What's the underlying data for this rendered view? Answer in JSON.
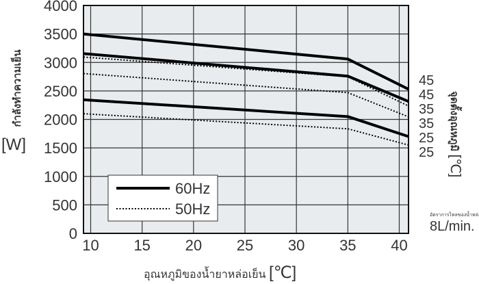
{
  "chart_data": {
    "type": "line",
    "xlabel": "อุณหภูมิของน้ำยาหล่อเย็น",
    "xunit": "[℃]",
    "ylabel": "กำลังทำความเย็น",
    "yunit": "[W]",
    "xlim": [
      9.3,
      40.9
    ],
    "ylim": [
      0,
      4000
    ],
    "xticks": [
      10,
      15,
      20,
      25,
      30,
      35,
      40
    ],
    "yticks": [
      0,
      500,
      1000,
      1500,
      2000,
      2500,
      3000,
      3500,
      4000
    ],
    "grid": true,
    "legend_position": "bottom-left",
    "legend": [
      {
        "label": "60Hz",
        "style": "solid"
      },
      {
        "label": "50Hz",
        "style": "dotted"
      }
    ],
    "right_axis": {
      "title": "จุดตั้งอุณหภูมิ",
      "unit": "[℃]",
      "labels": [
        "45",
        "45",
        "35",
        "35",
        "25",
        "25"
      ]
    },
    "flow_note": {
      "label": "อัตราการไหลของน้ำหล่อเย็น",
      "value": "8L/min."
    },
    "series": [
      {
        "freq": "60Hz",
        "style": "solid",
        "x": [
          9.3,
          35,
          40.9
        ],
        "y": [
          3500,
          3060,
          2530
        ]
      },
      {
        "freq": "60Hz",
        "style": "solid",
        "x": [
          9.3,
          35,
          40.9
        ],
        "y": [
          3155,
          2760,
          2315
        ]
      },
      {
        "freq": "60Hz",
        "style": "solid",
        "x": [
          9.3,
          35,
          40.9
        ],
        "y": [
          2345,
          2050,
          1700
        ]
      },
      {
        "freq": "50Hz",
        "style": "dotted",
        "x": [
          9.3,
          35,
          40.9
        ],
        "y": [
          3095,
          2750,
          2235
        ]
      },
      {
        "freq": "50Hz",
        "style": "dotted",
        "x": [
          9.3,
          35,
          40.9
        ],
        "y": [
          2805,
          2470,
          2045
        ]
      },
      {
        "freq": "50Hz",
        "style": "dotted",
        "x": [
          9.3,
          35,
          40.9
        ],
        "y": [
          2100,
          1835,
          1550
        ]
      }
    ],
    "colors": {
      "plot_background": "#e8ecef",
      "grid": "#333333",
      "line": "#000000"
    }
  }
}
